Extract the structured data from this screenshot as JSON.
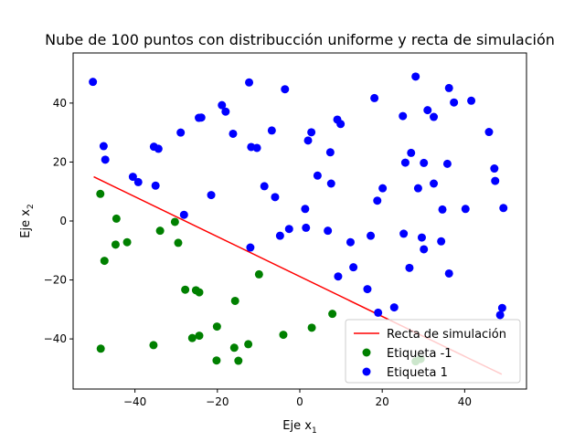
{
  "chart_data": {
    "type": "scatter",
    "title": "Nube de 100 puntos con distribucción uniforme y recta de simulación",
    "xlabel": {
      "main": "Eje x",
      "sub": "1"
    },
    "ylabel": {
      "main": "Eje x",
      "sub": "2"
    },
    "xlim": [
      -55,
      55
    ],
    "ylim": [
      -57,
      57
    ],
    "xticks": [
      -40,
      -20,
      0,
      20,
      40
    ],
    "yticks": [
      -40,
      -20,
      0,
      20,
      40
    ],
    "legend_position": "lower-right",
    "line": {
      "name": "Recta de simulación",
      "color": "#ff0000",
      "x": [
        -50,
        49
      ],
      "y": [
        15,
        -52
      ]
    },
    "series": [
      {
        "name": "Etiqueta -1",
        "color": "#008000",
        "points": [
          [
            -48.4,
            9.2
          ],
          [
            -44.5,
            0.8
          ],
          [
            -44.7,
            -8
          ],
          [
            -41.9,
            -7.2
          ],
          [
            -47.4,
            -13.5
          ],
          [
            -48.3,
            -43.3
          ],
          [
            -35.5,
            -42.1
          ],
          [
            -33.9,
            -3.3
          ],
          [
            -30.3,
            -0.3
          ],
          [
            -29.5,
            -7.4
          ],
          [
            -27.8,
            -23.3
          ],
          [
            -25.2,
            -23.5
          ],
          [
            -24.4,
            -24.2
          ],
          [
            -26.1,
            -39.7
          ],
          [
            -24.4,
            -38.9
          ],
          [
            -20.1,
            -35.8
          ],
          [
            -20.2,
            -47.3
          ],
          [
            -15.7,
            -27.1
          ],
          [
            -15.9,
            -43
          ],
          [
            -14.9,
            -47.4
          ],
          [
            -12.5,
            -41.8
          ],
          [
            -9.9,
            -18.1
          ],
          [
            -4,
            -38.6
          ],
          [
            2.9,
            -36.2
          ],
          [
            7.9,
            -31.5
          ],
          [
            28.1,
            -47.6
          ],
          [
            29.3,
            -46.8
          ]
        ]
      },
      {
        "name": "Etiqueta 1",
        "color": "#0000ff",
        "points": [
          [
            -50.2,
            47.2
          ],
          [
            -47.6,
            25.4
          ],
          [
            -47.2,
            20.8
          ],
          [
            -40.5,
            15
          ],
          [
            -39.2,
            13.2
          ],
          [
            -35.4,
            25.2
          ],
          [
            -34.3,
            24.5
          ],
          [
            -35,
            12
          ],
          [
            -28.9,
            30
          ],
          [
            -28.1,
            2.1
          ],
          [
            -24.5,
            35
          ],
          [
            -23.9,
            35.1
          ],
          [
            -21.5,
            8.8
          ],
          [
            -18.9,
            39.3
          ],
          [
            -18,
            37.1
          ],
          [
            -16.2,
            29.6
          ],
          [
            -12.3,
            47
          ],
          [
            -11.8,
            25.1
          ],
          [
            -10.4,
            24.8
          ],
          [
            -12,
            -9
          ],
          [
            -8.6,
            11.8
          ],
          [
            -6.8,
            30.7
          ],
          [
            -6,
            8.1
          ],
          [
            -4.8,
            -5
          ],
          [
            -3.6,
            44.7
          ],
          [
            -2.6,
            -2.7
          ],
          [
            1.3,
            4.1
          ],
          [
            1.5,
            -2.3
          ],
          [
            2,
            27.3
          ],
          [
            2.8,
            30.1
          ],
          [
            4.3,
            15.4
          ],
          [
            6.8,
            -3.3
          ],
          [
            7.4,
            23.3
          ],
          [
            7.6,
            12.7
          ],
          [
            9.1,
            34.4
          ],
          [
            9.9,
            32.9
          ],
          [
            9.3,
            -18.8
          ],
          [
            12.3,
            -7.2
          ],
          [
            13,
            -15.7
          ],
          [
            16.4,
            -23.1
          ],
          [
            17.2,
            -5
          ],
          [
            18.1,
            41.7
          ],
          [
            18.8,
            6.9
          ],
          [
            19,
            -31.1
          ],
          [
            20.1,
            11.1
          ],
          [
            22.9,
            -29.3
          ],
          [
            25,
            35.6
          ],
          [
            25.6,
            19.8
          ],
          [
            25.2,
            -4.3
          ],
          [
            26.6,
            -15.9
          ],
          [
            27,
            23.1
          ],
          [
            28.1,
            49
          ],
          [
            28.7,
            11.1
          ],
          [
            29.6,
            -5.6
          ],
          [
            30.1,
            19.7
          ],
          [
            30.1,
            -9.6
          ],
          [
            31,
            37.6
          ],
          [
            32.5,
            35.3
          ],
          [
            32.5,
            12.7
          ],
          [
            34.6,
            3.9
          ],
          [
            34.3,
            -6.9
          ],
          [
            35.8,
            19.4
          ],
          [
            36.2,
            45.1
          ],
          [
            36.2,
            -17.8
          ],
          [
            37.4,
            40.2
          ],
          [
            40.2,
            4.1
          ],
          [
            41.6,
            40.8
          ],
          [
            45.9,
            30.2
          ],
          [
            47.2,
            17.8
          ],
          [
            47.4,
            13.6
          ],
          [
            48.6,
            -31.9
          ],
          [
            49.1,
            -29.5
          ],
          [
            49.4,
            4.4
          ]
        ]
      }
    ]
  }
}
